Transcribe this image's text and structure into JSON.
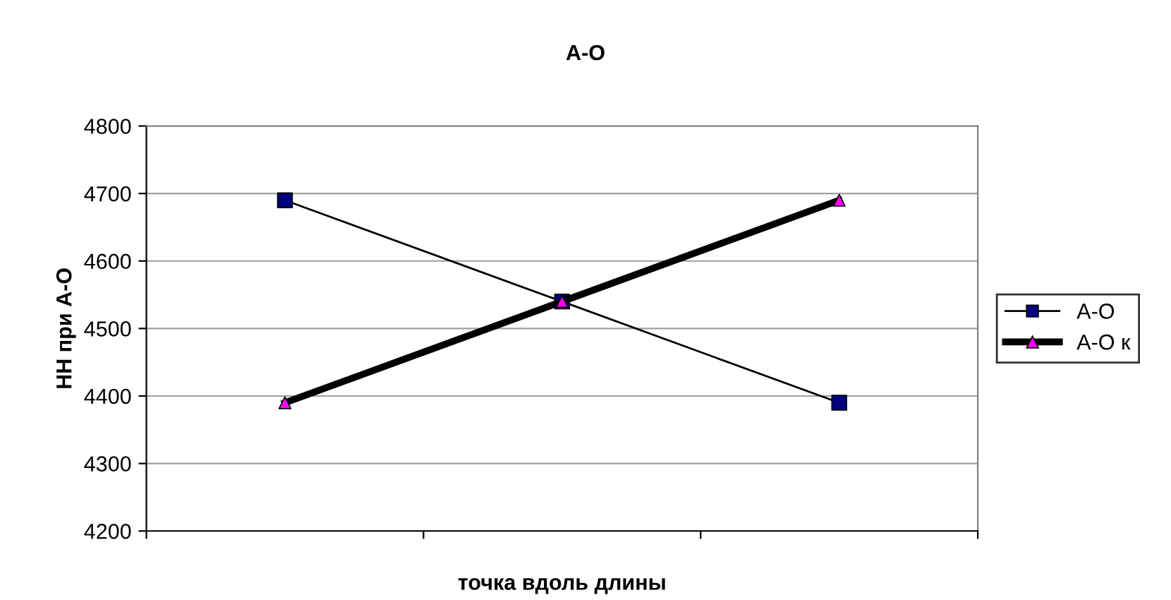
{
  "chart_data": {
    "type": "line",
    "title": "А-О",
    "xlabel": "точка вдоль длины",
    "ylabel": "НН при А-О",
    "categories": [
      null,
      null,
      null
    ],
    "series": [
      {
        "name": "А-О",
        "color": "#000000",
        "colors": [
          "#000080",
          "#000080",
          "#000080"
        ],
        "values": [
          4690,
          4540,
          4390
        ],
        "marker": "square"
      },
      {
        "name": "А-О к",
        "color": "#000000",
        "colors": [
          "#ff00ff",
          "#ff00ff",
          "#ff00ff"
        ],
        "values": [
          4390,
          4540,
          4690
        ],
        "marker": "triangle"
      }
    ],
    "ylim": [
      4200,
      4800
    ],
    "yticks": [
      4200,
      4300,
      4400,
      4500,
      4600,
      4700,
      4800
    ],
    "grid": "y",
    "legend": "right",
    "tick_labels": "y"
  }
}
